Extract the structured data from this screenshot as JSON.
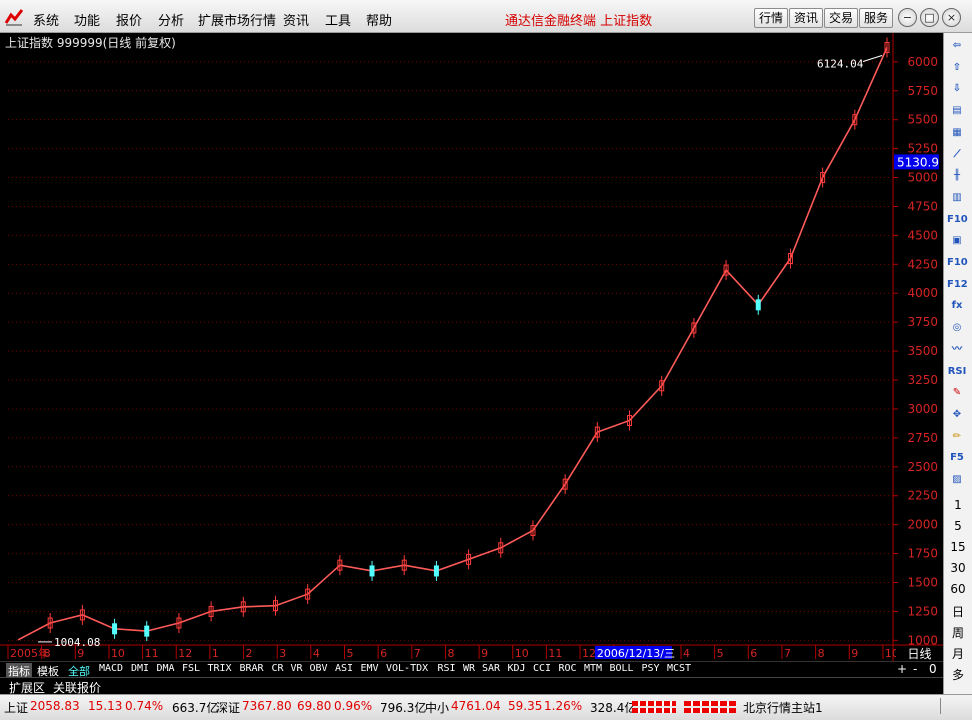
{
  "menu": [
    "系统",
    "功能",
    "报价",
    "分析",
    "扩展市场行情",
    "资讯",
    "工具",
    "帮助"
  ],
  "app_title": "通达信金融终端   上证指数",
  "toolbar_buttons": [
    "行情",
    "资讯",
    "交易",
    "服务"
  ],
  "window_controls": [
    "−",
    "□",
    "×"
  ],
  "chart": {
    "header": "上证指数 999999(日线 前复权)",
    "current_price_label": "5130.9",
    "high_label": "6124.04",
    "low_label": "1004.08",
    "period": "日线",
    "cursor_date": "2006/12/13/三",
    "y_ticks": [
      "6000",
      "5750",
      "5500",
      "5250",
      "5000",
      "4750",
      "4500",
      "4250",
      "4000",
      "3750",
      "3500",
      "3250",
      "3000",
      "2750",
      "2500",
      "2250",
      "2000",
      "1750",
      "1500",
      "1250",
      "1000"
    ],
    "x_ticks": [
      "2005年",
      "8",
      "9",
      "10",
      "11",
      "12",
      "1",
      "2",
      "3",
      "4",
      "5",
      "6",
      "7",
      "8",
      "9",
      "10",
      "11",
      "12",
      "2",
      "3",
      "4",
      "5",
      "6",
      "7",
      "8",
      "9",
      "10"
    ],
    "colors": {
      "up": "#ff3c3c",
      "down": "#54ffff",
      "grid": "#7a0000",
      "axis": "#b00000"
    }
  },
  "chart_data": {
    "type": "line",
    "title": "上证指数 999999(日线 前复权)",
    "xlabel": "",
    "ylabel": "",
    "ylim": [
      1000,
      6000
    ],
    "x": [
      "2005-07",
      "2005-08",
      "2005-09",
      "2005-10",
      "2005-11",
      "2005-12",
      "2006-01",
      "2006-02",
      "2006-03",
      "2006-04",
      "2006-05",
      "2006-06",
      "2006-07",
      "2006-08",
      "2006-09",
      "2006-10",
      "2006-11",
      "2006-12",
      "2007-01",
      "2007-02",
      "2007-03",
      "2007-04",
      "2007-05",
      "2007-06",
      "2007-07",
      "2007-08",
      "2007-09",
      "2007-10"
    ],
    "series": [
      {
        "values": [
          1004,
          1150,
          1220,
          1100,
          1080,
          1150,
          1250,
          1290,
          1300,
          1400,
          1650,
          1600,
          1650,
          1600,
          1700,
          1800,
          1950,
          2350,
          2800,
          2900,
          3200,
          3700,
          4200,
          3900,
          4300,
          5000,
          5500,
          6124
        ]
      }
    ]
  },
  "indicators": {
    "active_tab": "指标",
    "tabs": [
      "指标",
      "模板",
      "全部"
    ],
    "items": [
      "MACD",
      "DMI",
      "DMA",
      "FSL",
      "TRIX",
      "BRAR",
      "CR",
      "VR",
      "OBV",
      "ASI",
      "EMV",
      "VOL-TDX",
      "RSI",
      "WR",
      "SAR",
      "KDJ",
      "CCI",
      "ROC",
      "MTM",
      "BOLL",
      "PSY",
      "MCST"
    ],
    "zoom_controls": [
      "+",
      "-",
      "0"
    ]
  },
  "expand_tabs": [
    "扩展区",
    "关联报价"
  ],
  "status": {
    "sh_label": "上证",
    "sh_value": "2058.83",
    "sh_change": "15.13",
    "sh_pct": "0.74%",
    "sh_amount": "663.7亿",
    "sz_label": "深证",
    "sz_value": "7367.80",
    "sz_change": "69.80",
    "sz_pct": "0.96%",
    "sz_amount": "796.3亿",
    "zx_label": "中小",
    "zx_value": "4761.04",
    "zx_change": "59.35",
    "zx_pct": "1.26%",
    "zx_amount": "328.4亿",
    "server": "北京行情主站1"
  },
  "right_toolbar": {
    "icons": [
      "arrow-left-icon",
      "arrow-up-icon",
      "arrow-down-icon",
      "report-icon",
      "table-icon",
      "line-chart-icon",
      "candle-chart-icon",
      "grid-icon",
      "f10-icon",
      "doc-icon",
      "f10-page-icon",
      "f12-icon",
      "fx-icon",
      "circle-icon",
      "wave-icon",
      "rsi-icon",
      "pen-icon",
      "move-icon",
      "pencil-icon",
      "f5-icon",
      "photo-icon"
    ],
    "labels": {
      "rsi": "RSI",
      "f10": "F10",
      "f12": "F12",
      "fx": "fx",
      "f5": "F5"
    },
    "digits": [
      "1",
      "5",
      "15",
      "30",
      "60"
    ],
    "period_labels": [
      "日",
      "周",
      "月",
      "多"
    ]
  }
}
